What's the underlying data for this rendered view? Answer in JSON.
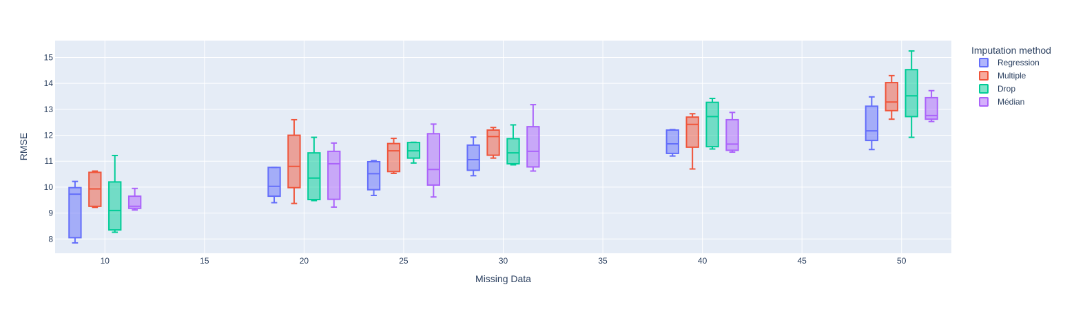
{
  "chart_data": {
    "type": "box",
    "xlabel": "Missing Data",
    "ylabel": "RMSE",
    "x_ticks": [
      10,
      15,
      20,
      25,
      30,
      35,
      40,
      45,
      50
    ],
    "y_ticks": [
      8,
      9,
      10,
      11,
      12,
      13,
      14,
      15
    ],
    "xlim": [
      7.5,
      52.5
    ],
    "ylim": [
      7.45,
      15.65
    ],
    "grid": true,
    "legend": {
      "title": "Imputation method",
      "position": "right"
    },
    "series": [
      {
        "name": "Regression",
        "color": "#636efa",
        "boxes": [
          {
            "x": 10,
            "min": 7.85,
            "q1": 8.05,
            "median": 9.73,
            "q3": 9.98,
            "max": 10.22
          },
          {
            "x": 20,
            "min": 9.4,
            "q1": 9.65,
            "median": 10.03,
            "q3": 10.76,
            "max": 10.76
          },
          {
            "x": 25,
            "min": 9.68,
            "q1": 9.9,
            "median": 10.52,
            "q3": 10.98,
            "max": 11.02
          },
          {
            "x": 30,
            "min": 10.44,
            "q1": 10.65,
            "median": 11.06,
            "q3": 11.62,
            "max": 11.93
          },
          {
            "x": 40,
            "min": 11.2,
            "q1": 11.3,
            "median": 11.67,
            "q3": 12.2,
            "max": 12.22
          },
          {
            "x": 50,
            "min": 11.45,
            "q1": 11.8,
            "median": 12.17,
            "q3": 13.12,
            "max": 13.48
          }
        ]
      },
      {
        "name": "Multiple",
        "color": "#ef553b",
        "boxes": [
          {
            "x": 10,
            "min": 9.22,
            "q1": 9.26,
            "median": 9.93,
            "q3": 10.57,
            "max": 10.62
          },
          {
            "x": 20,
            "min": 9.37,
            "q1": 9.98,
            "median": 10.8,
            "q3": 12.0,
            "max": 12.6
          },
          {
            "x": 25,
            "min": 10.53,
            "q1": 10.6,
            "median": 11.4,
            "q3": 11.68,
            "max": 11.88
          },
          {
            "x": 30,
            "min": 11.12,
            "q1": 11.23,
            "median": 11.95,
            "q3": 12.2,
            "max": 12.3
          },
          {
            "x": 40,
            "min": 10.7,
            "q1": 11.54,
            "median": 12.42,
            "q3": 12.7,
            "max": 12.83
          },
          {
            "x": 50,
            "min": 12.62,
            "q1": 12.95,
            "median": 13.28,
            "q3": 14.03,
            "max": 14.3
          }
        ]
      },
      {
        "name": "Drop",
        "color": "#00cc96",
        "boxes": [
          {
            "x": 10,
            "min": 8.26,
            "q1": 8.35,
            "median": 9.1,
            "q3": 10.2,
            "max": 11.22
          },
          {
            "x": 20,
            "min": 9.48,
            "q1": 9.52,
            "median": 10.35,
            "q3": 11.32,
            "max": 11.92
          },
          {
            "x": 25,
            "min": 10.93,
            "q1": 11.12,
            "median": 11.4,
            "q3": 11.72,
            "max": 11.73
          },
          {
            "x": 30,
            "min": 10.86,
            "q1": 10.9,
            "median": 11.32,
            "q3": 11.87,
            "max": 12.4
          },
          {
            "x": 40,
            "min": 11.47,
            "q1": 11.56,
            "median": 12.72,
            "q3": 13.27,
            "max": 13.42
          },
          {
            "x": 50,
            "min": 11.92,
            "q1": 12.72,
            "median": 13.52,
            "q3": 14.53,
            "max": 15.25
          }
        ]
      },
      {
        "name": "Médian",
        "color": "#ab63fa",
        "boxes": [
          {
            "x": 10,
            "min": 9.12,
            "q1": 9.18,
            "median": 9.26,
            "q3": 9.65,
            "max": 9.95
          },
          {
            "x": 20,
            "min": 9.23,
            "q1": 9.53,
            "median": 10.9,
            "q3": 11.38,
            "max": 11.7
          },
          {
            "x": 25,
            "min": 9.62,
            "q1": 10.08,
            "median": 10.68,
            "q3": 12.06,
            "max": 12.43
          },
          {
            "x": 30,
            "min": 10.62,
            "q1": 10.78,
            "median": 11.38,
            "q3": 12.33,
            "max": 13.18
          },
          {
            "x": 40,
            "min": 11.35,
            "q1": 11.42,
            "median": 11.66,
            "q3": 12.6,
            "max": 12.88
          },
          {
            "x": 50,
            "min": 12.53,
            "q1": 12.62,
            "median": 12.76,
            "q3": 13.45,
            "max": 13.72
          }
        ]
      }
    ]
  }
}
